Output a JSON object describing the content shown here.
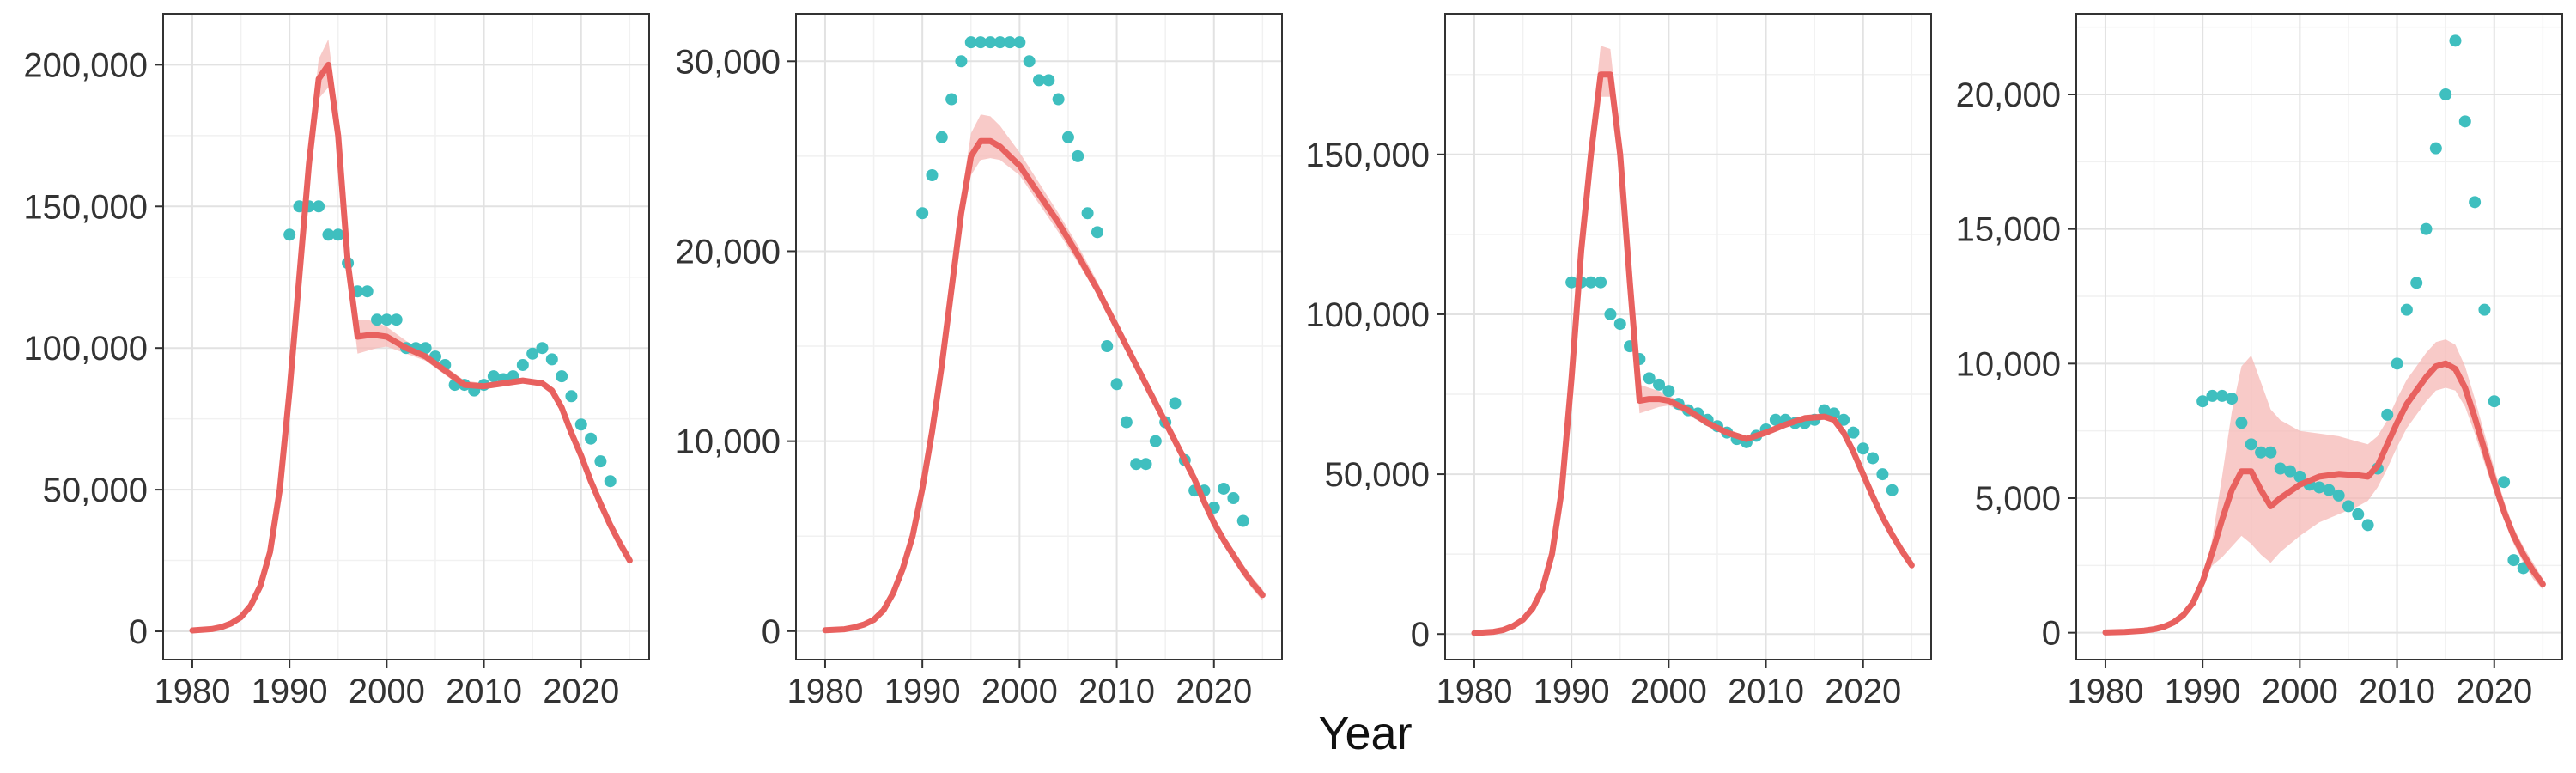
{
  "figure": {
    "shared_xlabel": "Year",
    "colors": {
      "model_line": "#e8615f",
      "model_band": "#f6b8b6",
      "observed_points": "#3fbfbf",
      "panel_border": "#333333",
      "grid_major": "#e2e2e2",
      "grid_minor": "#f1f1f1",
      "tick_text": "#333333"
    }
  },
  "chart_data": [
    {
      "type": "line",
      "xlim": [
        1977,
        2027
      ],
      "ylim": [
        -10000,
        218000
      ],
      "x_ticks": [
        1980,
        1990,
        2000,
        2010,
        2020
      ],
      "x_tick_labels": [
        "1980",
        "1990",
        "2000",
        "2010",
        "2020"
      ],
      "y_ticks": [
        0,
        50000,
        100000,
        150000,
        200000
      ],
      "y_tick_labels": [
        "0",
        "50,000",
        "100,000",
        "150,000",
        "200,000"
      ],
      "grid": true,
      "model": {
        "x": [
          1980,
          1982,
          1983,
          1984,
          1985,
          1986,
          1987,
          1988,
          1989,
          1990,
          1991,
          1992,
          1993,
          1994,
          1995,
          1996,
          1997,
          1998,
          1999,
          2000,
          2002,
          2004,
          2006,
          2008,
          2010,
          2012,
          2014,
          2016,
          2017,
          2018,
          2019,
          2020,
          2021,
          2022,
          2023,
          2024,
          2025
        ],
        "y": [
          300,
          800,
          1500,
          2800,
          5000,
          9000,
          16000,
          28000,
          50000,
          85000,
          125000,
          165000,
          195000,
          200000,
          175000,
          130000,
          104000,
          104500,
          104500,
          104000,
          100000,
          97000,
          92000,
          87000,
          86500,
          87500,
          88500,
          87500,
          85000,
          79000,
          70000,
          62000,
          53000,
          45000,
          37500,
          31000,
          25000
        ],
        "lower": [
          300,
          800,
          1500,
          2800,
          5000,
          9000,
          16000,
          28000,
          50000,
          85000,
          122000,
          160000,
          188000,
          192000,
          170000,
          127000,
          98000,
          99000,
          100000,
          100500,
          98000,
          95500,
          90500,
          85500,
          85500,
          86500,
          87500,
          86500,
          84000,
          78000,
          69000,
          61000,
          52000,
          44000,
          36500,
          30000,
          24000
        ],
        "upper": [
          300,
          800,
          1500,
          2800,
          5000,
          9000,
          16000,
          28000,
          50000,
          85000,
          128000,
          170000,
          202000,
          209000,
          181000,
          134000,
          110000,
          110000,
          109000,
          107500,
          102500,
          98500,
          93500,
          88500,
          87500,
          88500,
          89500,
          88500,
          86000,
          80000,
          71000,
          63000,
          54000,
          46000,
          38500,
          32000,
          26000
        ]
      },
      "observed": {
        "x": [
          1990,
          1991,
          1992,
          1993,
          1994,
          1995,
          1996,
          1997,
          1998,
          1999,
          2000,
          2001,
          2002,
          2003,
          2004,
          2005,
          2006,
          2007,
          2008,
          2009,
          2010,
          2011,
          2012,
          2013,
          2014,
          2015,
          2016,
          2017,
          2018,
          2019,
          2020,
          2021,
          2022,
          2023
        ],
        "y": [
          140000,
          150000,
          150000,
          150000,
          140000,
          140000,
          130000,
          120000,
          120000,
          110000,
          110000,
          110000,
          100000,
          100000,
          100000,
          97000,
          94000,
          87000,
          87000,
          85000,
          87000,
          90000,
          89000,
          90000,
          94000,
          98000,
          100000,
          96000,
          90000,
          83000,
          73000,
          68000,
          60000,
          53000
        ]
      }
    },
    {
      "type": "line",
      "xlim": [
        1977,
        2027
      ],
      "ylim": [
        -1500,
        32500
      ],
      "x_ticks": [
        1980,
        1990,
        2000,
        2010,
        2020
      ],
      "x_tick_labels": [
        "1980",
        "1990",
        "2000",
        "2010",
        "2020"
      ],
      "y_ticks": [
        0,
        10000,
        20000,
        30000
      ],
      "y_tick_labels": [
        "0",
        "10,000",
        "20,000",
        "30,000"
      ],
      "grid": true,
      "model": {
        "x": [
          1980,
          1982,
          1983,
          1984,
          1985,
          1986,
          1987,
          1988,
          1989,
          1990,
          1991,
          1992,
          1993,
          1994,
          1995,
          1996,
          1997,
          1998,
          1999,
          2000,
          2002,
          2004,
          2006,
          2008,
          2010,
          2012,
          2014,
          2016,
          2018,
          2019,
          2020,
          2021,
          2022,
          2023,
          2024,
          2025
        ],
        "y": [
          50,
          100,
          200,
          350,
          600,
          1100,
          2000,
          3300,
          5000,
          7500,
          10500,
          14000,
          18000,
          22000,
          25000,
          25800,
          25800,
          25500,
          25000,
          24500,
          23000,
          21500,
          19800,
          18000,
          16000,
          14000,
          12000,
          10000,
          8000,
          6800,
          5700,
          4800,
          4000,
          3200,
          2500,
          1900
        ],
        "lower": [
          50,
          100,
          200,
          350,
          600,
          1100,
          2000,
          3300,
          5000,
          7500,
          10400,
          13700,
          17500,
          21200,
          24000,
          24800,
          24900,
          24800,
          24400,
          24000,
          22500,
          21000,
          19400,
          17700,
          15700,
          13700,
          11700,
          9700,
          7700,
          6500,
          5400,
          4500,
          3700,
          2900,
          2200,
          1600
        ],
        "upper": [
          50,
          100,
          200,
          350,
          600,
          1100,
          2000,
          3300,
          5000,
          7500,
          10600,
          14300,
          18500,
          22800,
          26200,
          27200,
          27100,
          26600,
          25900,
          25200,
          23600,
          22000,
          20300,
          18400,
          16300,
          14300,
          12300,
          10300,
          8300,
          7100,
          6000,
          5100,
          4300,
          3500,
          2800,
          2200
        ]
      },
      "observed": {
        "x": [
          1990,
          1991,
          1992,
          1993,
          1994,
          1995,
          1996,
          1997,
          1998,
          1999,
          2000,
          2001,
          2002,
          2003,
          2004,
          2005,
          2006,
          2007,
          2008,
          2009,
          2010,
          2011,
          2012,
          2013,
          2014,
          2015,
          2016,
          2017,
          2018,
          2019,
          2020,
          2021,
          2022,
          2023
        ],
        "y": [
          22000,
          24000,
          26000,
          28000,
          30000,
          31000,
          31000,
          31000,
          31000,
          31000,
          31000,
          30000,
          29000,
          29000,
          28000,
          26000,
          25000,
          22000,
          21000,
          15000,
          13000,
          11000,
          8800,
          8800,
          10000,
          11000,
          12000,
          9000,
          7400,
          7400,
          6500,
          7500,
          7000,
          5800
        ]
      }
    },
    {
      "type": "line",
      "xlim": [
        1977,
        2027
      ],
      "ylim": [
        -8000,
        194000
      ],
      "x_ticks": [
        1980,
        1990,
        2000,
        2010,
        2020
      ],
      "x_tick_labels": [
        "1980",
        "1990",
        "2000",
        "2010",
        "2020"
      ],
      "y_ticks": [
        0,
        50000,
        100000,
        150000
      ],
      "y_tick_labels": [
        "0",
        "50,000",
        "100,000",
        "150,000"
      ],
      "grid": true,
      "model": {
        "x": [
          1980,
          1982,
          1983,
          1984,
          1985,
          1986,
          1987,
          1988,
          1989,
          1990,
          1991,
          1992,
          1993,
          1994,
          1995,
          1996,
          1997,
          1998,
          1999,
          2000,
          2002,
          2004,
          2006,
          2008,
          2010,
          2012,
          2014,
          2016,
          2017,
          2018,
          2019,
          2020,
          2021,
          2022,
          2023,
          2024,
          2025
        ],
        "y": [
          300,
          700,
          1300,
          2500,
          4500,
          8000,
          14000,
          25000,
          45000,
          80000,
          120000,
          150000,
          175000,
          175000,
          150000,
          110000,
          73000,
          73500,
          73500,
          73000,
          70000,
          66000,
          63000,
          61000,
          63000,
          65500,
          67500,
          68000,
          67000,
          63000,
          57000,
          50000,
          43000,
          36500,
          31000,
          26000,
          21500
        ],
        "lower": [
          300,
          700,
          1300,
          2500,
          4500,
          8000,
          14000,
          25000,
          45000,
          80000,
          118000,
          146000,
          168000,
          168000,
          145000,
          107000,
          69000,
          70000,
          71000,
          71500,
          68500,
          65000,
          62000,
          60000,
          62000,
          64500,
          66500,
          67000,
          66000,
          62000,
          56000,
          49000,
          42000,
          35500,
          30000,
          25000,
          20500
        ],
        "upper": [
          300,
          700,
          1300,
          2500,
          4500,
          8000,
          14000,
          25000,
          45000,
          80000,
          122000,
          155000,
          184000,
          183000,
          155000,
          113000,
          78000,
          77000,
          76000,
          74500,
          71500,
          67000,
          64000,
          62000,
          64000,
          66500,
          68500,
          69000,
          68000,
          64000,
          58000,
          51000,
          44000,
          37500,
          32000,
          27000,
          22500
        ]
      },
      "observed": {
        "x": [
          1990,
          1991,
          1992,
          1993,
          1994,
          1995,
          1996,
          1997,
          1998,
          1999,
          2000,
          2001,
          2002,
          2003,
          2004,
          2005,
          2006,
          2007,
          2008,
          2009,
          2010,
          2011,
          2012,
          2013,
          2014,
          2015,
          2016,
          2017,
          2018,
          2019,
          2020,
          2021,
          2022,
          2023
        ],
        "y": [
          110000,
          110000,
          110000,
          110000,
          100000,
          97000,
          90000,
          86000,
          80000,
          78000,
          76000,
          72000,
          70000,
          69000,
          67000,
          65000,
          63000,
          61000,
          60000,
          62000,
          64000,
          67000,
          67000,
          66000,
          66000,
          67000,
          70000,
          69000,
          67000,
          63000,
          58000,
          55000,
          50000,
          45000
        ]
      }
    },
    {
      "type": "line",
      "xlim": [
        1977,
        2027
      ],
      "ylim": [
        -1000,
        23000
      ],
      "x_ticks": [
        1980,
        1990,
        2000,
        2010,
        2020
      ],
      "x_tick_labels": [
        "1980",
        "1990",
        "2000",
        "2010",
        "2020"
      ],
      "y_ticks": [
        0,
        5000,
        10000,
        15000,
        20000
      ],
      "y_tick_labels": [
        "0",
        "5,000",
        "10,000",
        "15,000",
        "20,000"
      ],
      "grid": true,
      "model": {
        "x": [
          1980,
          1982,
          1984,
          1985,
          1986,
          1987,
          1988,
          1989,
          1990,
          1991,
          1992,
          1993,
          1994,
          1995,
          1996,
          1997,
          1998,
          2000,
          2002,
          2004,
          2006,
          2007,
          2008,
          2009,
          2010,
          2011,
          2012,
          2013,
          2014,
          2015,
          2016,
          2017,
          2018,
          2019,
          2020,
          2021,
          2022,
          2023,
          2024,
          2025
        ],
        "y": [
          10,
          30,
          80,
          130,
          220,
          380,
          650,
          1100,
          1900,
          3000,
          4200,
          5300,
          6000,
          6000,
          5300,
          4700,
          5000,
          5500,
          5800,
          5900,
          5850,
          5800,
          6200,
          7000,
          7800,
          8500,
          9000,
          9500,
          9900,
          10000,
          9800,
          9100,
          8000,
          6800,
          5600,
          4500,
          3600,
          2900,
          2300,
          1800
        ],
        "lower": [
          10,
          30,
          80,
          130,
          220,
          380,
          650,
          1100,
          1900,
          2500,
          2800,
          3200,
          3600,
          3300,
          2900,
          2600,
          3000,
          3600,
          4100,
          4400,
          4700,
          4900,
          5400,
          6100,
          6900,
          7600,
          8100,
          8600,
          9000,
          9100,
          9000,
          8400,
          7400,
          6300,
          5200,
          4200,
          3300,
          2600,
          2000,
          1600
        ],
        "upper": [
          10,
          30,
          80,
          130,
          220,
          380,
          650,
          1100,
          1900,
          3500,
          5800,
          8200,
          9900,
          10300,
          9300,
          8300,
          7900,
          7500,
          7400,
          7300,
          7100,
          7000,
          7300,
          7900,
          8700,
          9400,
          9900,
          10400,
          10800,
          10900,
          10700,
          9900,
          8700,
          7400,
          6100,
          4900,
          3900,
          3200,
          2600,
          2000
        ]
      },
      "observed": {
        "x": [
          1990,
          1991,
          1992,
          1993,
          1994,
          1995,
          1996,
          1997,
          1998,
          1999,
          2000,
          2001,
          2002,
          2003,
          2004,
          2005,
          2006,
          2007,
          2008,
          2009,
          2010,
          2011,
          2012,
          2013,
          2014,
          2015,
          2016,
          2017,
          2018,
          2019,
          2020,
          2021,
          2022,
          2023
        ],
        "y": [
          8600,
          8800,
          8800,
          8700,
          7800,
          7000,
          6700,
          6700,
          6100,
          6000,
          5800,
          5500,
          5400,
          5300,
          5100,
          4700,
          4400,
          4000,
          6100,
          8100,
          10000,
          12000,
          13000,
          15000,
          18000,
          20000,
          22000,
          19000,
          16000,
          12000,
          8600,
          5600,
          2700,
          2400
        ]
      }
    }
  ]
}
